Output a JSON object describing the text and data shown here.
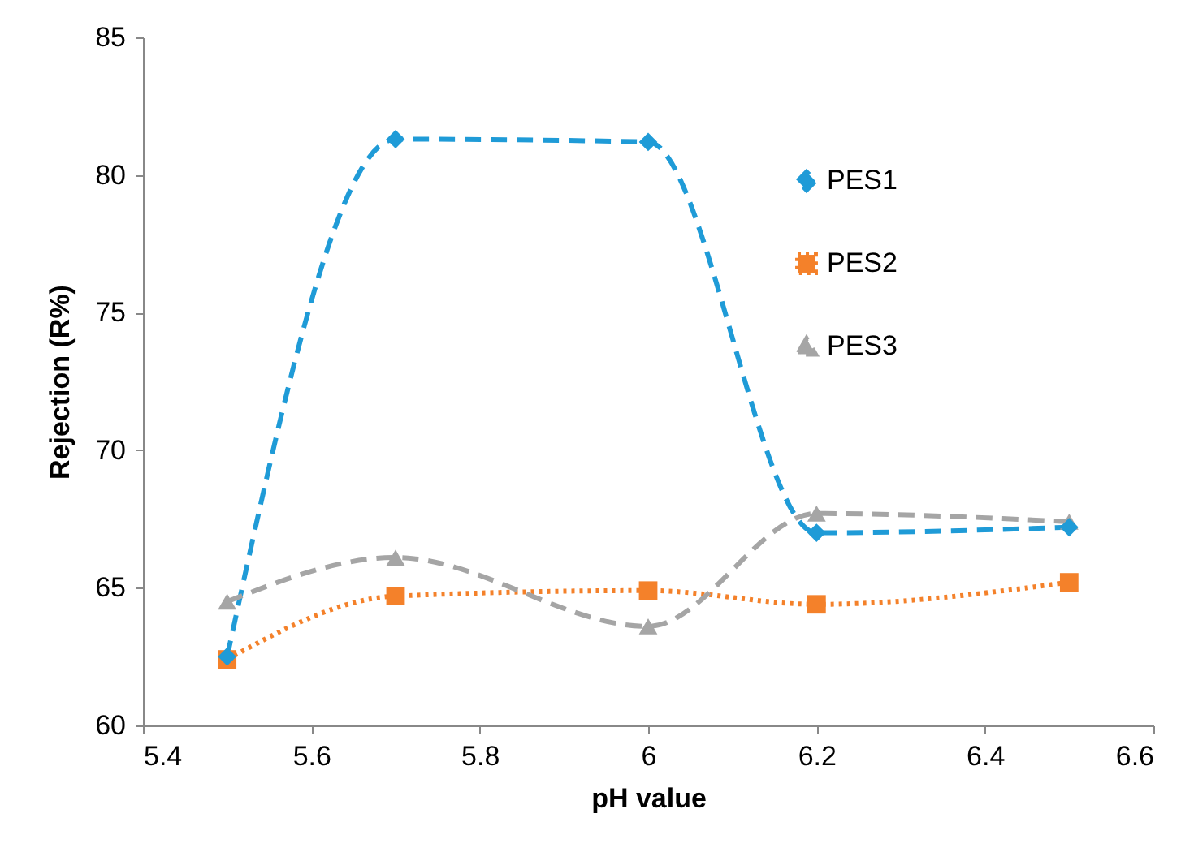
{
  "chart_data": {
    "type": "line",
    "xlabel": "pH value",
    "ylabel": "Rejection (R%)",
    "x": [
      5.5,
      5.7,
      6.0,
      6.2,
      6.5
    ],
    "series": [
      {
        "name": "PES1",
        "color": "#1f9bd7",
        "values": [
          62.5,
          81.3,
          81.2,
          67.0,
          67.2
        ],
        "marker": "diamond",
        "line_style": "dashed"
      },
      {
        "name": "PES2",
        "color": "#f4812a",
        "values": [
          62.4,
          64.7,
          64.9,
          64.4,
          65.2
        ],
        "marker": "square",
        "line_style": "dotted"
      },
      {
        "name": "PES3",
        "color": "#a5a5a5",
        "values": [
          64.5,
          66.1,
          63.6,
          67.7,
          67.4
        ],
        "marker": "triangle",
        "line_style": "dashed"
      }
    ],
    "xlim": [
      5.4,
      6.6
    ],
    "xticks": [
      5.4,
      5.6,
      5.8,
      6,
      6.2,
      6.4,
      6.6
    ],
    "ylim": [
      60,
      85
    ],
    "yticks": [
      60,
      65,
      70,
      75,
      80,
      85
    ],
    "grid": false,
    "legend": "right"
  }
}
